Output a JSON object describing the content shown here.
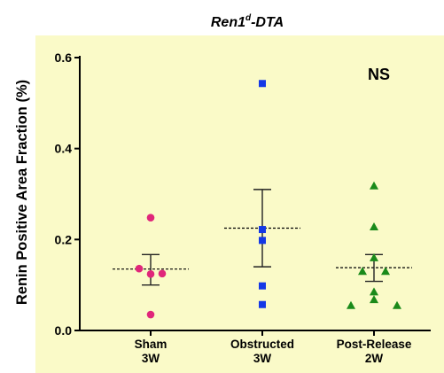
{
  "chart_data": {
    "type": "scatter",
    "title": {
      "base": "Ren1",
      "sup": "d",
      "rest": "-DTA"
    },
    "ylabel": "Renin Positive Area Fraction (%)",
    "xlabel": "",
    "ylim": [
      0,
      0.6
    ],
    "yticks": [
      "0.0",
      "0.2",
      "0.4",
      "0.6"
    ],
    "background_color": "#fafac8",
    "annotation": "NS",
    "grid": false,
    "groups": [
      {
        "label_line1": "Sham",
        "label_line2": "3W",
        "color": "#e0267a",
        "marker": "circle",
        "mean": 0.135,
        "sem_low": 0.1,
        "sem_high": 0.167,
        "points": [
          {
            "y": 0.248,
            "jitter": 0
          },
          {
            "y": 0.136,
            "jitter": -1
          },
          {
            "y": 0.124,
            "jitter": 0
          },
          {
            "y": 0.125,
            "jitter": 1
          },
          {
            "y": 0.035,
            "jitter": 0
          }
        ]
      },
      {
        "label_line1": "Obstructed",
        "label_line2": "3W",
        "color": "#1438e6",
        "marker": "square",
        "mean": 0.225,
        "sem_low": 0.14,
        "sem_high": 0.31,
        "points": [
          {
            "y": 0.543,
            "jitter": 0
          },
          {
            "y": 0.222,
            "jitter": 0
          },
          {
            "y": 0.198,
            "jitter": 0
          },
          {
            "y": 0.098,
            "jitter": 0
          },
          {
            "y": 0.057,
            "jitter": 0
          }
        ]
      },
      {
        "label_line1": "Post-Release",
        "label_line2": "2W",
        "color": "#1a8a1a",
        "marker": "triangle",
        "mean": 0.138,
        "sem_low": 0.108,
        "sem_high": 0.167,
        "points": [
          {
            "y": 0.318,
            "jitter": 0
          },
          {
            "y": 0.228,
            "jitter": 0
          },
          {
            "y": 0.16,
            "jitter": 0
          },
          {
            "y": 0.13,
            "jitter": -1
          },
          {
            "y": 0.13,
            "jitter": 1
          },
          {
            "y": 0.085,
            "jitter": 0
          },
          {
            "y": 0.068,
            "jitter": 0
          },
          {
            "y": 0.055,
            "jitter": -2
          },
          {
            "y": 0.055,
            "jitter": 2
          }
        ]
      }
    ]
  }
}
